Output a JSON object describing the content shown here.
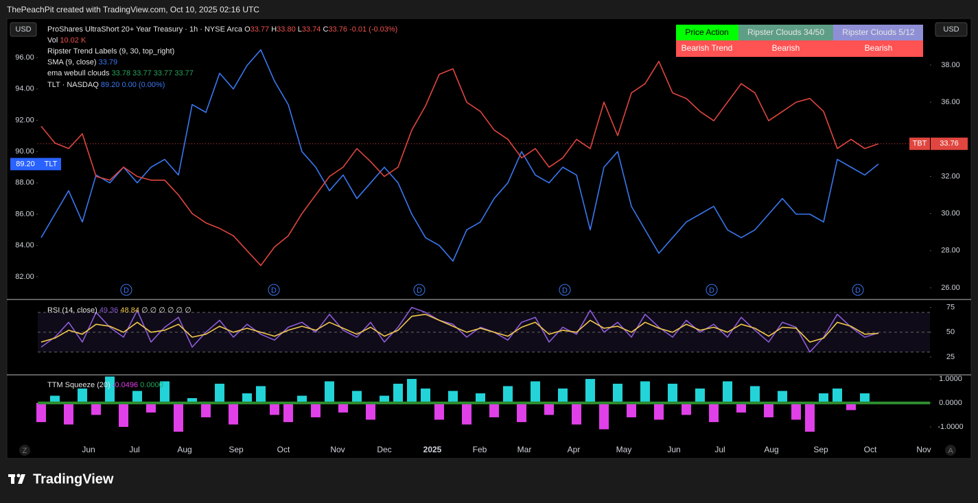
{
  "page": {
    "credit": "ThePeachPit created with TradingView.com, Oct 10, 2025 02:16 UTC",
    "brand": "TradingView",
    "currency": "USD",
    "axis_buttons": [
      "Z",
      "A"
    ],
    "dividend_marker": "D"
  },
  "legend": {
    "ohlc": [
      [
        "O",
        "33.77"
      ],
      [
        "H",
        "33.80"
      ],
      [
        "L",
        "33.74"
      ],
      [
        "C",
        "33.76"
      ]
    ],
    "change": "-0.01 (-0.03%)",
    "volume": [
      "Vol",
      "10.02 K"
    ],
    "trend_labels": "Ripster Trend Labels (9, 30, top_right)",
    "sma": [
      "SMA (9, close)",
      "33.79"
    ],
    "ema_clouds": [
      "ema webull clouds",
      "33.78",
      "33.77",
      "33.77",
      "33.77"
    ],
    "tlt_value": "89.20",
    "tlt_change": "0.00 (0.00%)",
    "tlt_tag": "TLT",
    "tbt_tag": "TBT",
    "rsi_values": [
      "49.36",
      "48.84",
      "∅ ∅ ∅ ∅ ∅ ∅"
    ],
    "ttm_values": [
      "-0.0496",
      "0.0000"
    ]
  },
  "table": {
    "header": [
      "Price Action",
      "Ripster Clouds 34/50",
      "Ripster Clouds 5/12"
    ],
    "row": [
      "Bearish Trend",
      "Bearish",
      "Bearish"
    ]
  },
  "chart_data": [
    {
      "type": "line",
      "x": [
        0,
        1,
        2,
        3,
        4,
        5,
        6,
        7,
        8,
        9,
        10,
        11,
        12,
        13,
        14,
        15,
        16,
        17,
        18,
        19,
        20,
        21,
        22,
        23,
        24,
        25,
        26,
        27,
        28,
        29,
        30,
        31,
        32,
        33,
        34,
        35,
        36,
        37,
        38,
        39,
        40,
        41,
        42,
        43,
        44,
        45,
        46,
        47,
        48,
        49,
        50,
        51,
        52,
        53,
        54,
        55,
        56,
        57,
        58,
        59,
        60,
        61
      ],
      "xlim": [
        -0.25,
        64.75
      ],
      "xticks": [
        {
          "value": 3.45,
          "label": "Jun"
        },
        {
          "value": 6.8,
          "label": "Jul"
        },
        {
          "value": 10.45,
          "label": "Aug"
        },
        {
          "value": 14.2,
          "label": "Sep"
        },
        {
          "value": 17.65,
          "label": "Oct"
        },
        {
          "value": 21.6,
          "label": "Nov"
        },
        {
          "value": 25,
          "label": "Dec"
        },
        {
          "value": 28.5,
          "label": "2025"
        },
        {
          "value": 31.95,
          "label": "Feb"
        },
        {
          "value": 35.2,
          "label": "Mar"
        },
        {
          "value": 38.8,
          "label": "Apr"
        },
        {
          "value": 42.45,
          "label": "May"
        },
        {
          "value": 46.1,
          "label": "Jun"
        },
        {
          "value": 49.45,
          "label": "Jul"
        },
        {
          "value": 53.2,
          "label": "Aug"
        },
        {
          "value": 56.8,
          "label": "Sep"
        },
        {
          "value": 60.4,
          "label": "Oct"
        },
        {
          "value": 64.3,
          "label": "Nov"
        }
      ],
      "ylim": [
        80.55,
        98.5
      ],
      "yticks": [
        {
          "value": 82,
          "label": "82.00"
        },
        {
          "value": 84,
          "label": "84.00"
        },
        {
          "value": 86,
          "label": "86.00"
        },
        {
          "value": 88,
          "label": "88.00"
        },
        {
          "value": 90,
          "label": "90.00"
        },
        {
          "value": 92,
          "label": "92.00"
        },
        {
          "value": 94,
          "label": "94.00"
        },
        {
          "value": 96,
          "label": "96.00"
        }
      ],
      "y_axis_side": "left",
      "y2lim": [
        25.37,
        40.51
      ],
      "y2ticks": [
        {
          "value": 26,
          "label": "26.00"
        },
        {
          "value": 28,
          "label": "28.00"
        },
        {
          "value": 30,
          "label": "30.00"
        },
        {
          "value": 32,
          "label": "32.00"
        },
        {
          "value": 36,
          "label": "36.00"
        },
        {
          "value": 38,
          "label": "38.00"
        }
      ],
      "grid": false,
      "series": [
        {
          "name": "TLT · NASDAQ",
          "color": "#3a78f2",
          "axis": "y",
          "values": [
            84.5,
            86,
            87.5,
            85.5,
            88.5,
            88,
            89,
            88,
            89,
            89.5,
            88.5,
            93,
            92.5,
            95,
            94,
            95.5,
            96.5,
            94.5,
            93,
            90,
            89,
            87.5,
            88.5,
            87,
            88,
            89,
            88,
            86,
            84.5,
            84,
            83,
            85,
            85.5,
            87,
            88,
            90,
            88.5,
            88,
            89,
            88.5,
            85,
            89,
            90,
            86.5,
            85,
            83.5,
            84.5,
            85.5,
            86,
            86.5,
            85,
            84.5,
            85,
            86,
            87,
            86,
            86,
            85.5,
            89.5,
            89,
            88.5,
            89.2
          ]
        },
        {
          "name": "ProShares UltraShort 20+ Year Treasury · 1h · NYSE Arca",
          "color": "#e0463f",
          "axis": "y2",
          "values": [
            34.7,
            33.8,
            33.5,
            34.3,
            32,
            31.8,
            32.5,
            32,
            31.8,
            31.8,
            31,
            30,
            29.5,
            29.2,
            28.8,
            28,
            27.2,
            28.2,
            28.8,
            30,
            31,
            32,
            32.5,
            33.5,
            32.8,
            32,
            32.5,
            34.5,
            35.8,
            37.5,
            37.8,
            36,
            35.5,
            34.5,
            34,
            33,
            33.5,
            32.5,
            33,
            34,
            33.5,
            36,
            34.2,
            36.5,
            37,
            38.2,
            36.5,
            36.2,
            35.5,
            35,
            36,
            37,
            36.5,
            35,
            35.5,
            36,
            36.2,
            35.5,
            33.5,
            34,
            33.5,
            33.76
          ]
        }
      ]
    },
    {
      "type": "line",
      "x": [
        0,
        1,
        2,
        3,
        4,
        5,
        6,
        7,
        8,
        9,
        10,
        11,
        12,
        13,
        14,
        15,
        16,
        17,
        18,
        19,
        20,
        21,
        22,
        23,
        24,
        25,
        26,
        27,
        28,
        29,
        30,
        31,
        32,
        33,
        34,
        35,
        36,
        37,
        38,
        39,
        40,
        41,
        42,
        43,
        44,
        45,
        46,
        47,
        48,
        49,
        50,
        51,
        52,
        53,
        54,
        55,
        56,
        57,
        58,
        59,
        60,
        61
      ],
      "ylim": [
        7,
        83
      ],
      "yticks": [
        25,
        50,
        75
      ],
      "y_axis_side": "right",
      "band": [
        30,
        70
      ],
      "hlines": [
        70,
        50,
        30
      ],
      "series": [
        {
          "name": "RSI (14, close)",
          "color": "#8e5cd9",
          "values": [
            35,
            45,
            60,
            40,
            70,
            55,
            45,
            72,
            40,
            55,
            65,
            35,
            50,
            62,
            45,
            58,
            48,
            42,
            55,
            60,
            50,
            68,
            52,
            45,
            60,
            40,
            55,
            75,
            70,
            62,
            58,
            45,
            55,
            50,
            42,
            60,
            65,
            40,
            55,
            48,
            72,
            50,
            60,
            45,
            68,
            55,
            45,
            62,
            50,
            58,
            45,
            65,
            52,
            40,
            60,
            55,
            30,
            45,
            68,
            55,
            45,
            49.36
          ]
        },
        {
          "color": "#f2c94c",
          "values": [
            40,
            44,
            52,
            48,
            58,
            56,
            50,
            60,
            50,
            52,
            58,
            45,
            48,
            56,
            50,
            54,
            50,
            46,
            52,
            56,
            52,
            60,
            54,
            48,
            55,
            46,
            52,
            66,
            68,
            62,
            56,
            50,
            54,
            50,
            46,
            55,
            60,
            48,
            52,
            50,
            62,
            54,
            56,
            50,
            60,
            54,
            50,
            58,
            52,
            55,
            50,
            58,
            54,
            46,
            55,
            54,
            40,
            44,
            60,
            56,
            48,
            48.84
          ]
        }
      ]
    },
    {
      "type": "bar",
      "x": [
        0,
        1,
        2,
        3,
        4,
        5,
        6,
        7,
        8,
        9,
        10,
        11,
        12,
        13,
        14,
        15,
        16,
        17,
        18,
        19,
        20,
        21,
        22,
        23,
        24,
        25,
        26,
        27,
        28,
        29,
        30,
        31,
        32,
        33,
        34,
        35,
        36,
        37,
        38,
        39,
        40,
        41,
        42,
        43,
        44,
        45,
        46,
        47,
        48,
        49,
        50,
        51,
        52,
        53,
        54,
        55,
        56,
        57,
        58,
        59,
        60,
        61
      ],
      "ylim": [
        -1.63,
        1.17
      ],
      "yticks": [
        {
          "value": -1,
          "label": "-1.0000"
        },
        {
          "value": 0,
          "label": "0.0000"
        },
        {
          "value": 1,
          "label": "1.0000"
        }
      ],
      "y_axis_side": "right",
      "zero_line": true,
      "zero_color": "#2e8b2e",
      "series": [
        {
          "name": "TTM Squeeze (20)",
          "color": "#22d3d8",
          "negative_color": "#e040e8",
          "values": [
            -0.8,
            0.3,
            -0.9,
            0.6,
            -0.5,
            1.1,
            -1,
            0.5,
            -0.4,
            0.9,
            -1.2,
            0.2,
            -0.6,
            0.8,
            -0.9,
            0.4,
            0.7,
            -0.5,
            -0.8,
            0.3,
            -0.6,
            0.9,
            -0.4,
            0.5,
            -0.7,
            0.3,
            0.8,
            1,
            0.6,
            -0.7,
            0.5,
            -0.9,
            0.4,
            -0.6,
            0.7,
            -0.8,
            0.9,
            -0.5,
            0.6,
            -0.9,
            1,
            -1.1,
            0.8,
            -0.6,
            0.9,
            -0.7,
            0.8,
            -0.5,
            0.6,
            -0.8,
            0.9,
            -0.4,
            0.7,
            -0.6,
            0.5,
            -0.7,
            -1.2,
            0.4,
            0.6,
            -0.3,
            0.4,
            -0.0496
          ]
        }
      ]
    }
  ]
}
